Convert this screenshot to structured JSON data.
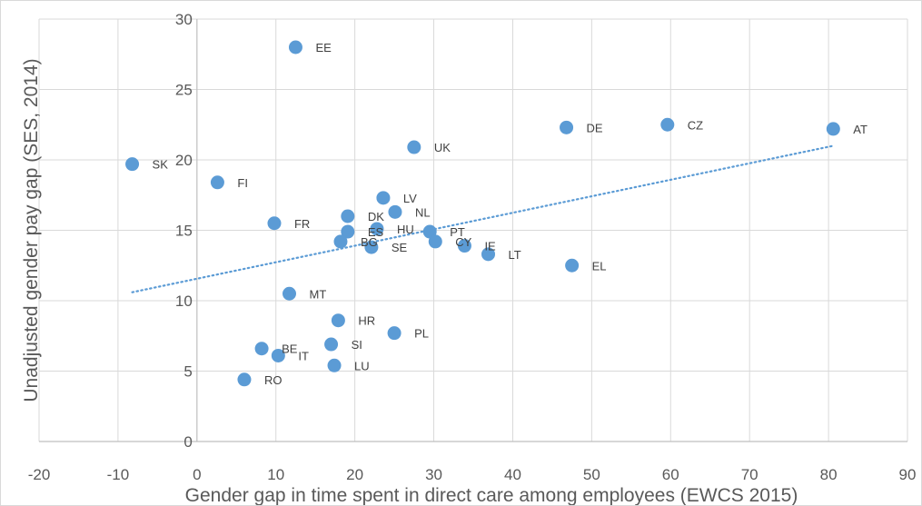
{
  "chart_data": {
    "type": "scatter",
    "title": "",
    "xlabel": "Gender gap in time spent in direct care among employees  (EWCS 2015)",
    "ylabel": "Unadjusted gender pay gap (SES, 2014)",
    "xlim": [
      -20,
      90
    ],
    "ylim": [
      0,
      30
    ],
    "xticks": [
      -20,
      -10,
      0,
      10,
      20,
      30,
      40,
      50,
      60,
      70,
      80,
      90
    ],
    "yticks": [
      0,
      5,
      10,
      15,
      20,
      25,
      30
    ],
    "grid": true,
    "legend": "none",
    "marker_color": "#5b9bd5",
    "trendline": {
      "type": "linear",
      "style": "dotted",
      "color": "#5b9bd5",
      "from": [
        -8.2,
        10.6
      ],
      "to": [
        80.6,
        21.0
      ]
    },
    "points": [
      {
        "label": "EE",
        "x": 12.5,
        "y": 28.0
      },
      {
        "label": "DE",
        "x": 46.8,
        "y": 22.3
      },
      {
        "label": "CZ",
        "x": 59.6,
        "y": 22.5
      },
      {
        "label": "AT",
        "x": 80.6,
        "y": 22.2
      },
      {
        "label": "UK",
        "x": 27.5,
        "y": 20.9
      },
      {
        "label": "SK",
        "x": -8.2,
        "y": 19.7
      },
      {
        "label": "FI",
        "x": 2.6,
        "y": 18.4
      },
      {
        "label": "LV",
        "x": 23.6,
        "y": 17.3
      },
      {
        "label": "NL",
        "x": 25.1,
        "y": 16.3
      },
      {
        "label": "DK",
        "x": 19.1,
        "y": 16.0
      },
      {
        "label": "FR",
        "x": 9.8,
        "y": 15.5
      },
      {
        "label": "ES",
        "x": 19.1,
        "y": 14.9
      },
      {
        "label": "HU",
        "x": 22.8,
        "y": 15.1
      },
      {
        "label": "PT",
        "x": 29.5,
        "y": 14.9
      },
      {
        "label": "BG",
        "x": 18.2,
        "y": 14.2
      },
      {
        "label": "SE",
        "x": 22.1,
        "y": 13.8
      },
      {
        "label": "CY",
        "x": 30.2,
        "y": 14.2
      },
      {
        "label": "IE",
        "x": 33.9,
        "y": 13.9
      },
      {
        "label": "LT",
        "x": 36.9,
        "y": 13.3
      },
      {
        "label": "EL",
        "x": 47.5,
        "y": 12.5
      },
      {
        "label": "MT",
        "x": 11.7,
        "y": 10.5
      },
      {
        "label": "HR",
        "x": 17.9,
        "y": 8.6
      },
      {
        "label": "PL",
        "x": 25.0,
        "y": 7.7
      },
      {
        "label": "SI",
        "x": 17.0,
        "y": 6.9
      },
      {
        "label": "BE",
        "x": 8.2,
        "y": 6.6
      },
      {
        "label": "IT",
        "x": 10.3,
        "y": 6.1
      },
      {
        "label": "LU",
        "x": 17.4,
        "y": 5.4
      },
      {
        "label": "RO",
        "x": 6.0,
        "y": 4.4
      }
    ]
  }
}
